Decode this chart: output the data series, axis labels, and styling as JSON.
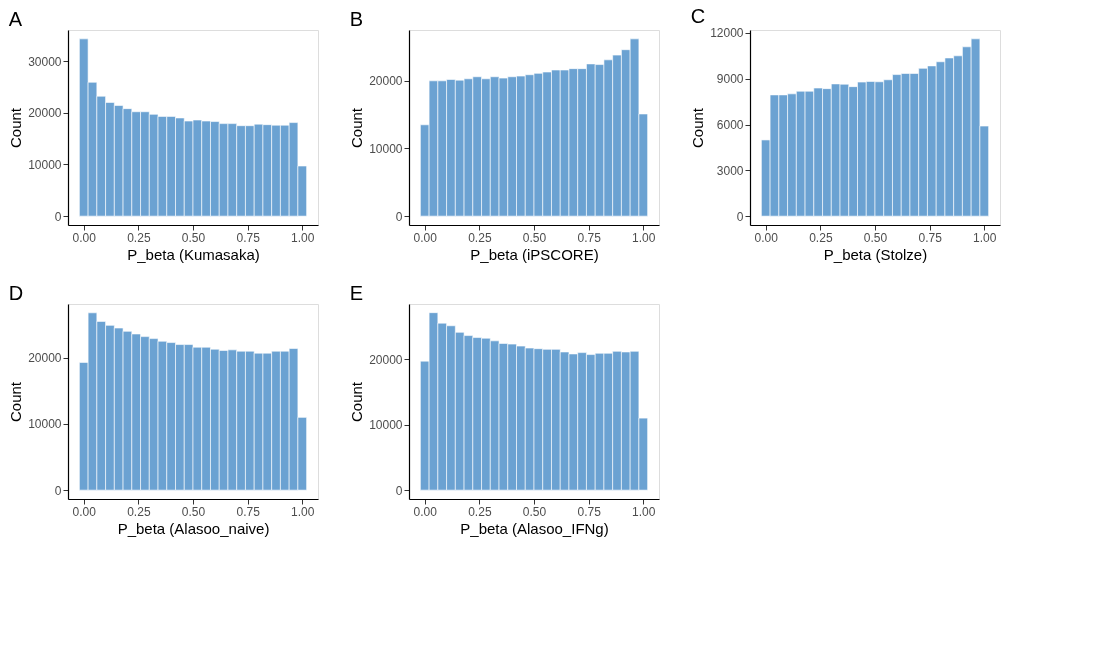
{
  "chart_data": [
    {
      "type": "histogram",
      "title": "A",
      "xlabel": "P_beta (Kumasaka)",
      "ylabel": "Count",
      "color": "#6ba2d2",
      "bins": [
        -0.02,
        0.02,
        0.06,
        0.1,
        0.14,
        0.18,
        0.22,
        0.26,
        0.3,
        0.34,
        0.38,
        0.42,
        0.46,
        0.5,
        0.54,
        0.58,
        0.62,
        0.66,
        0.7,
        0.74,
        0.78,
        0.82,
        0.86,
        0.9,
        0.94,
        0.98,
        1.02
      ],
      "values": [
        34300,
        25900,
        23200,
        22000,
        21400,
        20800,
        20200,
        20200,
        19700,
        19300,
        19300,
        19000,
        18400,
        18600,
        18400,
        18300,
        17900,
        17900,
        17500,
        17500,
        17800,
        17700,
        17600,
        17600,
        18100,
        9700
      ],
      "xlim": [
        -0.072,
        1.072
      ],
      "ylim": [
        -1715,
        36015
      ],
      "xticks": [
        {
          "value": 0,
          "label": "0.00"
        },
        {
          "value": 0.25,
          "label": "0.25"
        },
        {
          "value": 0.5,
          "label": "0.50"
        },
        {
          "value": 0.75,
          "label": "0.75"
        },
        {
          "value": 1,
          "label": "1.00"
        }
      ],
      "yticks": [
        0,
        10000,
        20000,
        30000
      ]
    },
    {
      "type": "histogram",
      "title": "B",
      "xlabel": "P_beta (iPSCORE)",
      "ylabel": "Count",
      "color": "#6ba2d2",
      "bins": [
        -0.02,
        0.02,
        0.06,
        0.1,
        0.14,
        0.18,
        0.22,
        0.26,
        0.3,
        0.34,
        0.38,
        0.42,
        0.46,
        0.5,
        0.54,
        0.58,
        0.62,
        0.66,
        0.7,
        0.74,
        0.78,
        0.82,
        0.86,
        0.9,
        0.94,
        0.98,
        1.02
      ],
      "values": [
        13500,
        20000,
        20000,
        20200,
        20100,
        20300,
        20600,
        20300,
        20600,
        20400,
        20600,
        20700,
        20900,
        21100,
        21300,
        21600,
        21600,
        21800,
        21800,
        22500,
        22400,
        23100,
        23800,
        24600,
        26200,
        15100
      ],
      "xlim": [
        -0.072,
        1.072
      ],
      "ylim": [
        -1310,
        27510
      ],
      "xticks": [
        {
          "value": 0,
          "label": "0.00"
        },
        {
          "value": 0.25,
          "label": "0.25"
        },
        {
          "value": 0.5,
          "label": "0.50"
        },
        {
          "value": 0.75,
          "label": "0.75"
        },
        {
          "value": 1,
          "label": "1.00"
        }
      ],
      "yticks": [
        0,
        10000,
        20000
      ]
    },
    {
      "type": "histogram",
      "title": "C",
      "xlabel": "P_beta (Stolze)",
      "ylabel": "Count",
      "color": "#6ba2d2",
      "bins": [
        -0.02,
        0.02,
        0.06,
        0.1,
        0.14,
        0.18,
        0.22,
        0.26,
        0.3,
        0.34,
        0.38,
        0.42,
        0.46,
        0.5,
        0.54,
        0.58,
        0.62,
        0.66,
        0.7,
        0.74,
        0.78,
        0.82,
        0.86,
        0.9,
        0.94,
        0.98,
        1.02
      ],
      "values": [
        4990,
        7940,
        7940,
        8010,
        8180,
        8180,
        8390,
        8350,
        8660,
        8640,
        8480,
        8780,
        8820,
        8800,
        8930,
        9270,
        9340,
        9340,
        9680,
        9840,
        10110,
        10360,
        10500,
        11090,
        11610,
        5900
      ],
      "xlim": [
        -0.072,
        1.072
      ],
      "ylim": [
        -580,
        12190
      ],
      "xticks": [
        {
          "value": 0,
          "label": "0.00"
        },
        {
          "value": 0.25,
          "label": "0.25"
        },
        {
          "value": 0.5,
          "label": "0.50"
        },
        {
          "value": 0.75,
          "label": "0.75"
        },
        {
          "value": 1,
          "label": "1.00"
        }
      ],
      "yticks": [
        0,
        3000,
        6000,
        9000,
        12000
      ]
    },
    {
      "type": "histogram",
      "title": "D",
      "xlabel": "P_beta (Alasoo_naive)",
      "ylabel": "Count",
      "color": "#6ba2d2",
      "bins": [
        -0.02,
        0.02,
        0.06,
        0.1,
        0.14,
        0.18,
        0.22,
        0.26,
        0.3,
        0.34,
        0.38,
        0.42,
        0.46,
        0.5,
        0.54,
        0.58,
        0.62,
        0.66,
        0.7,
        0.74,
        0.78,
        0.82,
        0.86,
        0.9,
        0.94,
        0.98,
        1.02
      ],
      "values": [
        19300,
        26800,
        25500,
        24900,
        24500,
        24000,
        23600,
        23200,
        22900,
        22500,
        22300,
        22000,
        22000,
        21600,
        21600,
        21300,
        21100,
        21200,
        21000,
        21000,
        20700,
        20700,
        21000,
        21000,
        21400,
        11000
      ],
      "xlim": [
        -0.072,
        1.072
      ],
      "ylim": [
        -1340,
        28130
      ],
      "xticks": [
        {
          "value": 0,
          "label": "0.00"
        },
        {
          "value": 0.25,
          "label": "0.25"
        },
        {
          "value": 0.5,
          "label": "0.50"
        },
        {
          "value": 0.75,
          "label": "0.75"
        },
        {
          "value": 1,
          "label": "1.00"
        }
      ],
      "yticks": [
        0,
        10000,
        20000
      ]
    },
    {
      "type": "histogram",
      "title": "E",
      "xlabel": "P_beta (Alasoo_IFNg)",
      "ylabel": "Count",
      "color": "#6ba2d2",
      "bins": [
        -0.02,
        0.02,
        0.06,
        0.1,
        0.14,
        0.18,
        0.22,
        0.26,
        0.3,
        0.34,
        0.38,
        0.42,
        0.46,
        0.5,
        0.54,
        0.58,
        0.62,
        0.66,
        0.7,
        0.74,
        0.78,
        0.82,
        0.86,
        0.9,
        0.94,
        0.98,
        1.02
      ],
      "values": [
        19700,
        27100,
        25500,
        25100,
        24100,
        23600,
        23300,
        23200,
        22800,
        22400,
        22300,
        22000,
        21700,
        21600,
        21500,
        21500,
        21100,
        20800,
        21000,
        20700,
        20900,
        20900,
        21200,
        21100,
        21200,
        11000
      ],
      "xlim": [
        -0.072,
        1.072
      ],
      "ylim": [
        -1354,
        28424
      ],
      "xticks": [
        {
          "value": 0,
          "label": "0.00"
        },
        {
          "value": 0.25,
          "label": "0.25"
        },
        {
          "value": 0.5,
          "label": "0.50"
        },
        {
          "value": 0.75,
          "label": "0.75"
        },
        {
          "value": 1,
          "label": "1.00"
        }
      ],
      "yticks": [
        0,
        10000,
        20000
      ]
    }
  ]
}
